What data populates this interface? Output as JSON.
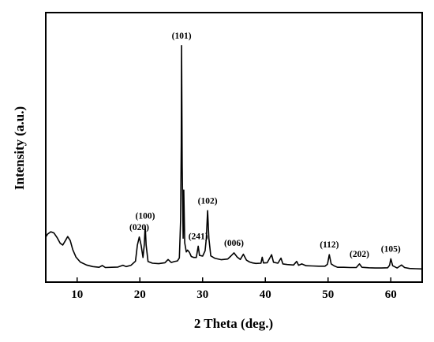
{
  "chart_data": {
    "type": "line",
    "title": "",
    "xlabel": "2 Theta (deg.)",
    "ylabel": "Intensity (a.u.)",
    "xlim": [
      5,
      65
    ],
    "ylim": [
      0,
      100
    ],
    "xticks": [
      10,
      20,
      30,
      40,
      50,
      60
    ],
    "yticks_shown": false,
    "grid": false,
    "legend": "none",
    "line_color": "#000000",
    "series": [
      {
        "values_xy": [
          [
            5.0,
            14.5
          ],
          [
            5.3,
            15.8
          ],
          [
            5.8,
            16.8
          ],
          [
            6.3,
            16.3
          ],
          [
            6.8,
            14.3
          ],
          [
            7.3,
            11.8
          ],
          [
            7.7,
            11.0
          ],
          [
            8.1,
            12.8
          ],
          [
            8.5,
            14.7
          ],
          [
            8.9,
            13.0
          ],
          [
            9.3,
            9.0
          ],
          [
            9.8,
            5.8
          ],
          [
            10.5,
            3.6
          ],
          [
            11.5,
            2.3
          ],
          [
            12.5,
            1.6
          ],
          [
            13.5,
            1.3
          ],
          [
            14.0,
            2.1
          ],
          [
            14.5,
            1.2
          ],
          [
            15.5,
            1.3
          ],
          [
            16.5,
            1.4
          ],
          [
            17.3,
            2.2
          ],
          [
            17.8,
            1.6
          ],
          [
            18.6,
            2.2
          ],
          [
            19.3,
            4.0
          ],
          [
            19.6,
            11.0
          ],
          [
            19.9,
            14.5
          ],
          [
            20.2,
            11.0
          ],
          [
            20.5,
            5.6
          ],
          [
            20.7,
            11.0
          ],
          [
            20.85,
            19.4
          ],
          [
            21.0,
            11.0
          ],
          [
            21.3,
            3.8
          ],
          [
            22.0,
            3.1
          ],
          [
            23.0,
            2.9
          ],
          [
            24.0,
            3.3
          ],
          [
            24.5,
            4.7
          ],
          [
            25.0,
            3.4
          ],
          [
            25.5,
            3.8
          ],
          [
            26.0,
            4.1
          ],
          [
            26.3,
            5.4
          ],
          [
            26.5,
            22.0
          ],
          [
            26.6,
            55.0
          ],
          [
            26.65,
            98.0
          ],
          [
            26.75,
            45.0
          ],
          [
            26.9,
            14.0
          ],
          [
            27.0,
            35.0
          ],
          [
            27.15,
            12.0
          ],
          [
            27.4,
            8.0
          ],
          [
            27.6,
            8.8
          ],
          [
            27.9,
            7.8
          ],
          [
            28.2,
            6.0
          ],
          [
            28.6,
            5.6
          ],
          [
            29.0,
            5.6
          ],
          [
            29.3,
            10.5
          ],
          [
            29.5,
            6.5
          ],
          [
            30.0,
            6.2
          ],
          [
            30.4,
            8.5
          ],
          [
            30.6,
            14.0
          ],
          [
            30.8,
            26.0
          ],
          [
            31.0,
            14.0
          ],
          [
            31.3,
            6.3
          ],
          [
            32.0,
            5.2
          ],
          [
            33.0,
            4.6
          ],
          [
            34.0,
            4.9
          ],
          [
            34.5,
            6.2
          ],
          [
            35.0,
            7.6
          ],
          [
            35.5,
            5.8
          ],
          [
            36.0,
            4.7
          ],
          [
            36.5,
            7.0
          ],
          [
            37.0,
            4.4
          ],
          [
            37.5,
            3.6
          ],
          [
            38.0,
            3.2
          ],
          [
            38.5,
            3.0
          ],
          [
            39.3,
            3.1
          ],
          [
            39.5,
            5.7
          ],
          [
            39.7,
            3.2
          ],
          [
            40.3,
            3.3
          ],
          [
            41.0,
            6.8
          ],
          [
            41.3,
            3.5
          ],
          [
            42.0,
            3.1
          ],
          [
            42.5,
            5.3
          ],
          [
            42.8,
            2.8
          ],
          [
            43.5,
            2.5
          ],
          [
            44.5,
            2.3
          ],
          [
            45.0,
            3.9
          ],
          [
            45.3,
            2.2
          ],
          [
            45.8,
            2.8
          ],
          [
            46.5,
            2.0
          ],
          [
            47.5,
            1.9
          ],
          [
            48.5,
            1.8
          ],
          [
            49.5,
            1.8
          ],
          [
            49.9,
            2.6
          ],
          [
            50.2,
            6.8
          ],
          [
            50.5,
            2.8
          ],
          [
            51.0,
            1.9
          ],
          [
            51.5,
            1.3
          ],
          [
            52.5,
            1.3
          ],
          [
            53.5,
            1.2
          ],
          [
            54.5,
            1.2
          ],
          [
            55.0,
            2.8
          ],
          [
            55.4,
            1.3
          ],
          [
            56.5,
            1.1
          ],
          [
            57.5,
            1.0
          ],
          [
            58.5,
            1.0
          ],
          [
            59.5,
            1.1
          ],
          [
            59.8,
            2.2
          ],
          [
            60.0,
            5.0
          ],
          [
            60.3,
            2.0
          ],
          [
            61.0,
            1.0
          ],
          [
            61.7,
            2.3
          ],
          [
            62.2,
            1.2
          ],
          [
            63.0,
            0.8
          ],
          [
            64.0,
            0.7
          ],
          [
            65.0,
            0.6
          ]
        ]
      }
    ],
    "annotations": [
      {
        "text": "(101)",
        "x": 26.65,
        "y": 98.0
      },
      {
        "text": "(100)",
        "x": 20.85,
        "y": 19.4
      },
      {
        "text": "(020)",
        "x": 19.9,
        "y": 14.5
      },
      {
        "text": "(102)",
        "x": 30.8,
        "y": 26.0
      },
      {
        "text": "(241)",
        "x": 29.3,
        "y": 10.5
      },
      {
        "text": "(006)",
        "x": 35.0,
        "y": 7.6
      },
      {
        "text": "(112)",
        "x": 50.2,
        "y": 6.8
      },
      {
        "text": "(202)",
        "x": 55.0,
        "y": 2.8
      },
      {
        "text": "(105)",
        "x": 60.0,
        "y": 5.0
      }
    ]
  }
}
